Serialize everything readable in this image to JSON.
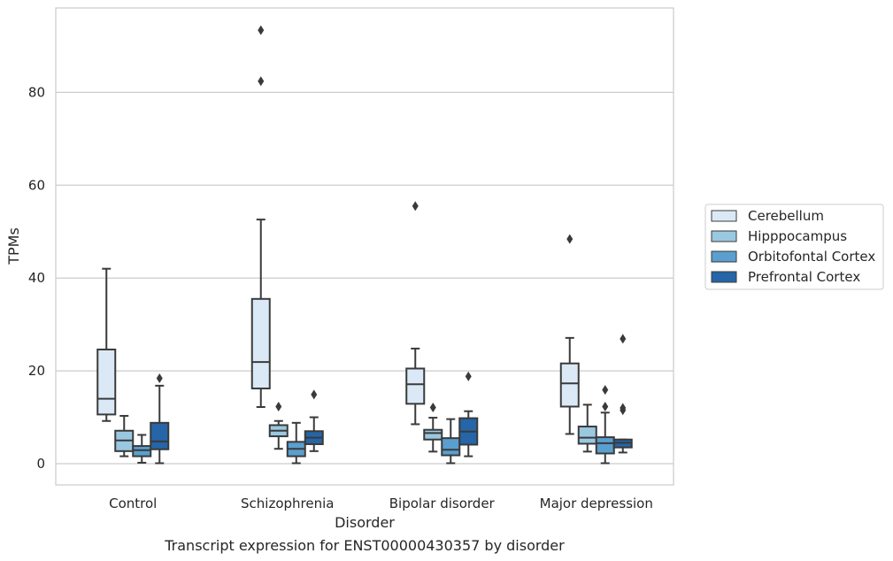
{
  "chart_data": {
    "type": "boxplot",
    "caption": "Transcript expression for ENST00000430357 by disorder",
    "xlabel": "Disorder",
    "ylabel": "TPMs",
    "ylim": [
      -4.5,
      98
    ],
    "yticks": [
      0,
      20,
      40,
      60,
      80
    ],
    "grid": true,
    "legend_position": "right",
    "categories": [
      "Control",
      "Schizophrenia",
      "Bipolar disorder",
      "Major depression"
    ],
    "series": [
      {
        "name": "Cerebellum",
        "color": "#dbe9f6",
        "boxes": [
          {
            "whislo": 9.2,
            "q1": 10.6,
            "med": 14.0,
            "q3": 24.6,
            "whishi": 42.0,
            "fliers": []
          },
          {
            "whislo": 12.2,
            "q1": 16.2,
            "med": 21.9,
            "q3": 35.5,
            "whishi": 52.6,
            "fliers": [
              82.4,
              93.4
            ]
          },
          {
            "whislo": 8.5,
            "q1": 12.9,
            "med": 17.1,
            "q3": 20.5,
            "whishi": 24.8,
            "fliers": [
              55.5
            ]
          },
          {
            "whislo": 6.4,
            "q1": 12.3,
            "med": 17.3,
            "q3": 21.6,
            "whishi": 27.1,
            "fliers": [
              48.4
            ]
          }
        ]
      },
      {
        "name": "Hipppocampus",
        "color": "#9ac8e0",
        "boxes": [
          {
            "whislo": 1.6,
            "q1": 2.7,
            "med": 5.0,
            "q3": 7.1,
            "whishi": 10.3,
            "fliers": []
          },
          {
            "whislo": 3.2,
            "q1": 5.9,
            "med": 7.1,
            "q3": 8.3,
            "whishi": 9.2,
            "fliers": [
              12.3
            ]
          },
          {
            "whislo": 2.6,
            "q1": 5.2,
            "med": 6.6,
            "q3": 7.3,
            "whishi": 9.9,
            "fliers": [
              12.1
            ]
          },
          {
            "whislo": 2.6,
            "q1": 4.3,
            "med": 5.6,
            "q3": 8.0,
            "whishi": 12.7,
            "fliers": []
          }
        ]
      },
      {
        "name": "Orbitofontal Cortex",
        "color": "#5a9fcf",
        "boxes": [
          {
            "whislo": 0.2,
            "q1": 1.6,
            "med": 2.9,
            "q3": 3.8,
            "whishi": 6.2,
            "fliers": []
          },
          {
            "whislo": 0.1,
            "q1": 1.6,
            "med": 3.2,
            "q3": 4.7,
            "whishi": 8.8,
            "fliers": []
          },
          {
            "whislo": 0.1,
            "q1": 1.8,
            "med": 3.0,
            "q3": 5.5,
            "whishi": 9.6,
            "fliers": []
          },
          {
            "whislo": 0.1,
            "q1": 2.2,
            "med": 4.4,
            "q3": 5.7,
            "whishi": 11.0,
            "fliers": [
              12.3,
              15.9
            ]
          }
        ]
      },
      {
        "name": "Prefrontal Cortex",
        "color": "#2565a8",
        "boxes": [
          {
            "whislo": 0.1,
            "q1": 3.1,
            "med": 4.8,
            "q3": 8.8,
            "whishi": 16.8,
            "fliers": [
              18.4
            ]
          },
          {
            "whislo": 2.7,
            "q1": 4.2,
            "med": 5.6,
            "q3": 7.0,
            "whishi": 10.0,
            "fliers": [
              14.9
            ]
          },
          {
            "whislo": 1.6,
            "q1": 4.1,
            "med": 6.9,
            "q3": 9.8,
            "whishi": 11.3,
            "fliers": [
              18.8
            ]
          },
          {
            "whislo": 2.4,
            "q1": 3.5,
            "med": 4.5,
            "q3": 5.2,
            "whishi": 5.2,
            "fliers": [
              11.5,
              12.0,
              26.9
            ]
          }
        ]
      }
    ]
  }
}
